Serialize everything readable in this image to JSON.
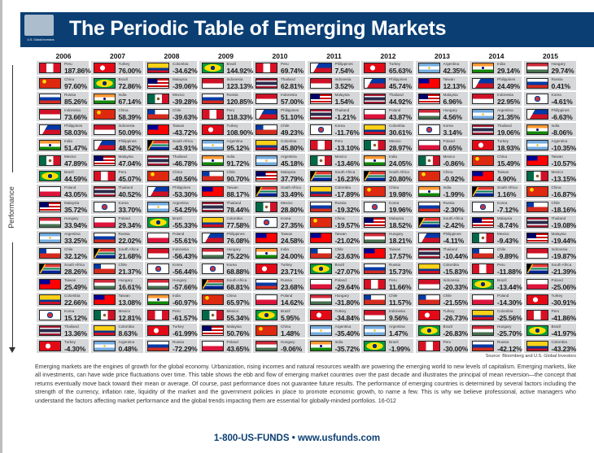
{
  "header": {
    "title": "The Periodic Table of Emerging Markets",
    "logo_text": "U.S. Global Investors",
    "brand_color": "#0b3f74"
  },
  "axis_label": "Performance",
  "years": [
    {
      "year": "2006",
      "rows": [
        [
          "Peru",
          "187.86%"
        ],
        [
          "China",
          "97.60%"
        ],
        [
          "Russia",
          "85.26%"
        ],
        [
          "Indonesia",
          "73.66%"
        ],
        [
          "Philippines",
          "58.03%"
        ],
        [
          "India",
          "51.47%"
        ],
        [
          "Mexico",
          "47.89%"
        ],
        [
          "Brazil",
          "44.59%"
        ],
        [
          "Poland",
          "43.05%"
        ],
        [
          "Malaysia",
          "35.72%"
        ],
        [
          "Hungary",
          "33.94%"
        ],
        [
          "Argentina",
          "33.25%"
        ],
        [
          "Chile",
          "32.12%"
        ],
        [
          "South Africa",
          "28.26%"
        ],
        [
          "Taiwan",
          "25.49%"
        ],
        [
          "Colombia",
          "22.66%"
        ],
        [
          "Korea",
          "15.12%"
        ],
        [
          "Thailand",
          "13.36%"
        ],
        [
          "Turkey",
          "-4.30%"
        ]
      ]
    },
    {
      "year": "2007",
      "rows": [
        [
          "Turkey",
          "76.00%"
        ],
        [
          "Brazil",
          "72.86%"
        ],
        [
          "India",
          "67.14%"
        ],
        [
          "China",
          "58.39%"
        ],
        [
          "Indonesia",
          "50.09%"
        ],
        [
          "Philippines",
          "48.52%"
        ],
        [
          "Malaysia",
          "47.04%"
        ],
        [
          "Peru",
          "45.07%"
        ],
        [
          "Thailand",
          "40.52%"
        ],
        [
          "Korea",
          "33.70%"
        ],
        [
          "Poland",
          "29.34%"
        ],
        [
          "Russia",
          "22.02%"
        ],
        [
          "South Africa",
          "21.68%"
        ],
        [
          "Chile",
          "21.37%"
        ],
        [
          "Hungary",
          "16.61%"
        ],
        [
          "Taiwan",
          "13.08%"
        ],
        [
          "Mexico",
          "12.81%"
        ],
        [
          "Colombia",
          "8.63%"
        ],
        [
          "Argentina",
          "0.48%"
        ]
      ]
    },
    {
      "year": "2008",
      "rows": [
        [
          "Colombia",
          "-34.62%"
        ],
        [
          "Malaysia",
          "-39.06%"
        ],
        [
          "Mexico",
          "-39.28%"
        ],
        [
          "Chile",
          "-39.63%"
        ],
        [
          "Taiwan",
          "-43.72%"
        ],
        [
          "South Africa",
          "-43.91%"
        ],
        [
          "Thailand",
          "-46.78%"
        ],
        [
          "China",
          "-49.56%"
        ],
        [
          "Philippines",
          "-53.30%"
        ],
        [
          "Argentina",
          "-54.25%"
        ],
        [
          "Brazil",
          "-55.33%"
        ],
        [
          "Poland",
          "-55.61%"
        ],
        [
          "Indonesia",
          "-56.43%"
        ],
        [
          "Korea",
          "-56.44%"
        ],
        [
          "Hungary",
          "-57.66%"
        ],
        [
          "India",
          "-60.97%"
        ],
        [
          "Peru",
          "-61.57%"
        ],
        [
          "Turkey",
          "-61.99%"
        ],
        [
          "Russia",
          "-72.29%"
        ]
      ]
    },
    {
      "year": "2009",
      "rows": [
        [
          "Brazil",
          "144.92%"
        ],
        [
          "Indonesia",
          "123.13%"
        ],
        [
          "Russia",
          "120.85%"
        ],
        [
          "Peru",
          "118.33%"
        ],
        [
          "Turkey",
          "108.90%"
        ],
        [
          "Argentina",
          "95.12%"
        ],
        [
          "India",
          "91.72%"
        ],
        [
          "Chile",
          "90.70%"
        ],
        [
          "Taiwan",
          "88.17%"
        ],
        [
          "Thailand",
          "78.44%"
        ],
        [
          "Colombia",
          "77.58%"
        ],
        [
          "Philippines",
          "76.08%"
        ],
        [
          "Hungary",
          "75.22%"
        ],
        [
          "Korea",
          "68.88%"
        ],
        [
          "South Africa",
          "68.81%"
        ],
        [
          "China",
          "65.97%"
        ],
        [
          "Mexico",
          "55.34%"
        ],
        [
          "Malaysia",
          "50.76%"
        ],
        [
          "Poland",
          "43.65%"
        ]
      ]
    },
    {
      "year": "2010",
      "rows": [
        [
          "Peru",
          "69.74%"
        ],
        [
          "Thailand",
          "62.81%"
        ],
        [
          "Indonesia",
          "57.00%"
        ],
        [
          "Philippines",
          "51.10%"
        ],
        [
          "Chile",
          "49.23%"
        ],
        [
          "Colombia",
          "45.80%"
        ],
        [
          "Argentina",
          "45.18%"
        ],
        [
          "Malaysia",
          "37.79%"
        ],
        [
          "South Africa",
          "33.49%"
        ],
        [
          "Mexico",
          "28.80%"
        ],
        [
          "Korea",
          "27.35%"
        ],
        [
          "Taiwan",
          "24.58%"
        ],
        [
          "India",
          "24.00%"
        ],
        [
          "Turkey",
          "23.71%"
        ],
        [
          "Russia",
          "23.68%"
        ],
        [
          "Poland",
          "14.62%"
        ],
        [
          "Brazil",
          "5.95%"
        ],
        [
          "China",
          "1.48%"
        ],
        [
          "Hungary",
          "-9.06%"
        ]
      ]
    },
    {
      "year": "2011",
      "rows": [
        [
          "Philippines",
          "7.54%"
        ],
        [
          "Indonesia",
          "3.52%"
        ],
        [
          "Malaysia",
          "1.54%"
        ],
        [
          "Thailand",
          "-1.21%"
        ],
        [
          "Korea",
          "-11.76%"
        ],
        [
          "Peru",
          "-13.10%"
        ],
        [
          "Mexico",
          "-13.46%"
        ],
        [
          "South Africa",
          "-16.23%"
        ],
        [
          "Colombia",
          "-17.89%"
        ],
        [
          "Russia",
          "-19.32%"
        ],
        [
          "China",
          "-19.57%"
        ],
        [
          "Taiwan",
          "-21.02%"
        ],
        [
          "Chile",
          "-23.63%"
        ],
        [
          "Brazil",
          "-27.07%"
        ],
        [
          "Poland",
          "-29.64%"
        ],
        [
          "Hungary",
          "-31.80%"
        ],
        [
          "Turkey",
          "-34.84%"
        ],
        [
          "Argentina",
          "-35.40%"
        ],
        [
          "India",
          "-35.72%"
        ]
      ]
    },
    {
      "year": "2012",
      "rows": [
        [
          "Turkey",
          "65.63%"
        ],
        [
          "Philippines",
          "45.74%"
        ],
        [
          "Thailand",
          "44.92%"
        ],
        [
          "Poland",
          "43.87%"
        ],
        [
          "Colombia",
          "30.61%"
        ],
        [
          "Mexico",
          "28.97%"
        ],
        [
          "India",
          "24.05%"
        ],
        [
          "South Africa",
          "20.80%"
        ],
        [
          "China",
          "19.98%"
        ],
        [
          "Korea",
          "19.96%"
        ],
        [
          "Malaysia",
          "18.52%"
        ],
        [
          "Hungary",
          "18.21%"
        ],
        [
          "Taiwan",
          "17.57%"
        ],
        [
          "Russia",
          "15.73%"
        ],
        [
          "Peru",
          "11.66%"
        ],
        [
          "Chile",
          "11.57%"
        ],
        [
          "Indonesia",
          "9.56%"
        ],
        [
          "Argentina",
          "1.47%"
        ],
        [
          "Brazil",
          "-1.99%"
        ]
      ]
    },
    {
      "year": "2013",
      "rows": [
        [
          "Argentina",
          "42.35%"
        ],
        [
          "Taiwan",
          "12.13%"
        ],
        [
          "Malaysia",
          "6.96%"
        ],
        [
          "Hungary",
          "4.56%"
        ],
        [
          "Korea",
          "3.14%"
        ],
        [
          "Poland",
          "0.65%"
        ],
        [
          "Mexico",
          "-0.86%"
        ],
        [
          "China",
          "-0.92%"
        ],
        [
          "India",
          "-1.99%"
        ],
        [
          "Russia",
          "-2.30%"
        ],
        [
          "South Africa",
          "-2.42%"
        ],
        [
          "Philippines",
          "-4.11%"
        ],
        [
          "Thailand",
          "-10.44%"
        ],
        [
          "Colombia",
          "-15.83%"
        ],
        [
          "Indonesia",
          "-20.33%"
        ],
        [
          "Chile",
          "-21.55%"
        ],
        [
          "Turkey",
          "-26.73%"
        ],
        [
          "Brazil",
          "-26.83%"
        ],
        [
          "Peru",
          "-30.00%"
        ]
      ]
    },
    {
      "year": "2014",
      "rows": [
        [
          "India",
          "29.14%"
        ],
        [
          "Philippines",
          "24.49%"
        ],
        [
          "Indonesia",
          "22.95%"
        ],
        [
          "Argentina",
          "21.35%"
        ],
        [
          "Thailand",
          "19.06%"
        ],
        [
          "Turkey",
          "18.93%"
        ],
        [
          "China",
          "15.49%"
        ],
        [
          "Taiwan",
          "4.90%"
        ],
        [
          "South Africa",
          "1.16%"
        ],
        [
          "Korea",
          "-7.12%"
        ],
        [
          "Malaysia",
          "-8.74%"
        ],
        [
          "Mexico",
          "-9.43%"
        ],
        [
          "Chile",
          "-9.89%"
        ],
        [
          "Peru",
          "-11.88%"
        ],
        [
          "Brazil",
          "-13.44%"
        ],
        [
          "Poland",
          "-14.30%"
        ],
        [
          "Colombia",
          "-25.56%"
        ],
        [
          "Hungary",
          "-25.70%"
        ],
        [
          "Russia",
          "-42.12%"
        ]
      ]
    },
    {
      "year": "2015",
      "rows": [
        [
          "Hungary",
          "29.74%"
        ],
        [
          "Russia",
          "0.41%"
        ],
        [
          "Korea",
          "-4.61%"
        ],
        [
          "Philippines",
          "-6.63%"
        ],
        [
          "India",
          "-8.06%"
        ],
        [
          "Argentina",
          "-10.35%"
        ],
        [
          "Taiwan",
          "-10.57%"
        ],
        [
          "Mexico",
          "-13.15%"
        ],
        [
          "China",
          "-16.87%"
        ],
        [
          "Chile",
          "-18.16%"
        ],
        [
          "Thailand",
          "-19.08%"
        ],
        [
          "Malaysia",
          "-19.44%"
        ],
        [
          "Indonesia",
          "-19.87%"
        ],
        [
          "South Africa",
          "-21.39%"
        ],
        [
          "Poland",
          "-25.06%"
        ],
        [
          "Turkey",
          "-30.91%"
        ],
        [
          "Peru",
          "-41.86%"
        ],
        [
          "Brazil",
          "-41.97%"
        ],
        [
          "Colombia",
          "-43.23%"
        ]
      ]
    }
  ],
  "source": "Source: Bloomberg and U.S. Global Investors",
  "description": "Emerging markets are the engines of growth for the global economy. Urbanization, rising incomes and natural resources wealth are powering the emerging world to new levels of capitalism. Emerging markets, like all investments, can have wide price fluctuations over time. This table shows the ebb and flow of emerging market countries over the past decade and illustrates the principal of mean reversion—the concept that returns eventually move back toward their mean or average. Of course, past performance does not guarantee future results. The performance of emerging countries is determined by several factors including the strength of the currency, inflation rate, liquidity of the market and the government policies in place to promote economic growth, to name a few. This is why we believe professional, active managers who understand the factors affecting market performance and the global trends impacting them are essential for globally-minded portfolios. 16-012",
  "footer": "1-800-US-FUNDS  •  www.usfunds.com"
}
